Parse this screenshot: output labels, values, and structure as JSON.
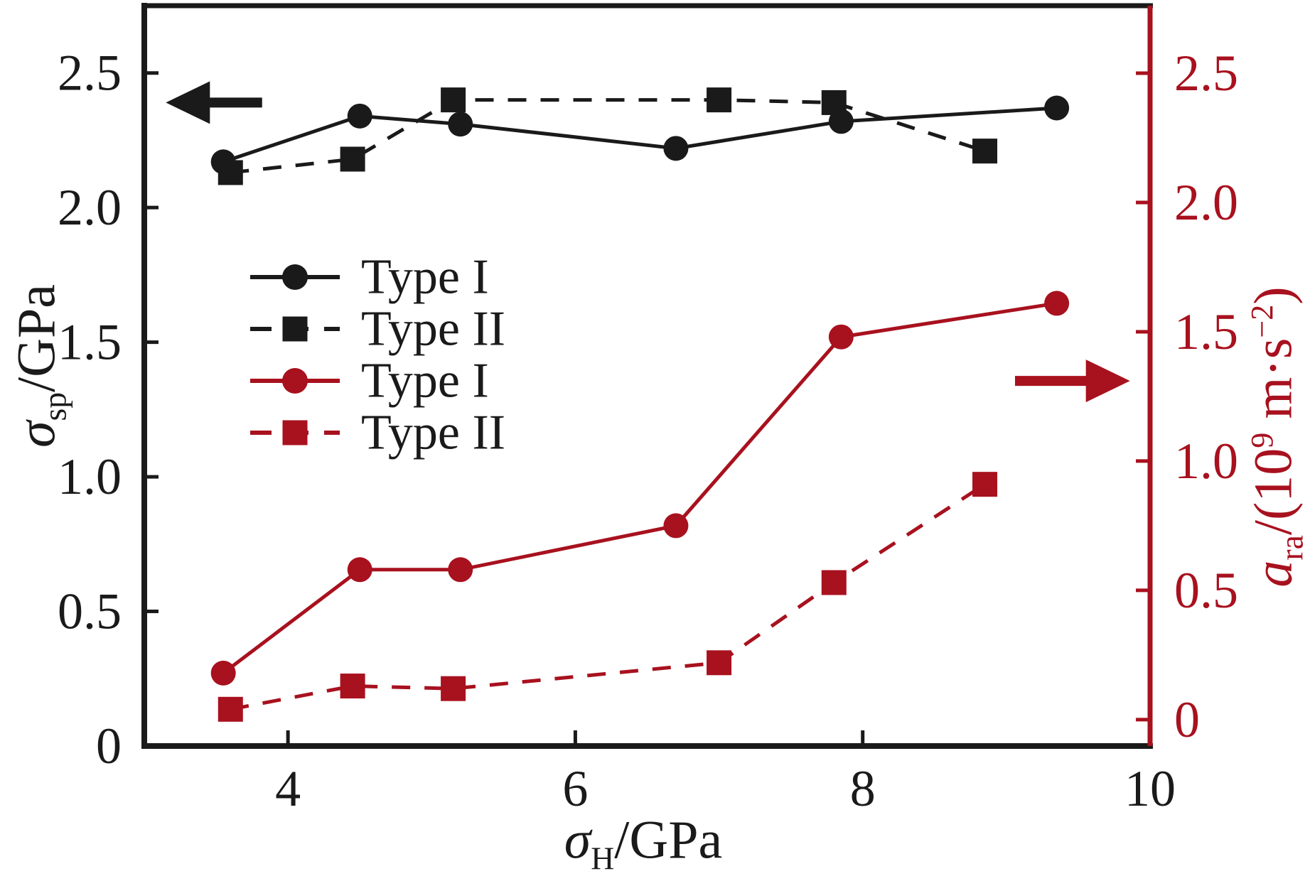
{
  "figure": {
    "background": "#ffffff",
    "colors": {
      "black_series": "#1a1a1a",
      "red_series": "#a8111e"
    }
  },
  "labels": {
    "left": {
      "symbol": "σ",
      "sub": "sp",
      "suffix": "/GPa"
    },
    "x": {
      "symbol": "σ",
      "sub": "H",
      "suffix": "/GPa"
    },
    "right": {
      "symbol": "a",
      "sub": "ra",
      "pre": "/(10",
      "sup1": "9",
      "mid": " m·s",
      "sup2": "−2",
      "post": ")"
    }
  },
  "chart_data": {
    "type": "line",
    "x_axis": {
      "label": "σ_H/GPa",
      "range": [
        3,
        10
      ],
      "tick_labels": [
        "4",
        "6",
        "8",
        "10"
      ],
      "tick_values": [
        4,
        6,
        8,
        10
      ],
      "tick_marks": [
        4,
        6,
        8
      ]
    },
    "y_left_axis": {
      "label": "σ_sp/GPa",
      "range": [
        0,
        2.75
      ],
      "color": "#1a1a1a",
      "tick_labels": [
        "0",
        "0.5",
        "1.0",
        "1.5",
        "2.0",
        "2.5"
      ],
      "tick_values": [
        0,
        0.5,
        1.0,
        1.5,
        2.0,
        2.5
      ],
      "tick_marks": [
        0.5,
        1.0,
        1.5,
        2.0,
        2.5
      ]
    },
    "y_right_axis": {
      "label": "a_ra/(10^9 m·s^-2)",
      "range": [
        -0.102,
        2.761
      ],
      "color": "#a8111e",
      "tick_labels": [
        "0",
        "0.5",
        "1.0",
        "1.5",
        "2.0",
        "2.5"
      ],
      "tick_values": [
        0,
        0.5,
        1.0,
        1.5,
        2.0,
        2.5
      ],
      "tick_marks": [
        0,
        0.5,
        1.0,
        1.5,
        2.0,
        2.5
      ]
    },
    "grid": false,
    "legend_position": "center-left",
    "series": [
      {
        "name": "Type I",
        "axis": "left",
        "color": "#1a1a1a",
        "marker": "circle",
        "line": "solid",
        "x": [
          3.55,
          4.5,
          5.2,
          6.7,
          7.85,
          9.35
        ],
        "y": [
          2.17,
          2.34,
          2.31,
          2.22,
          2.32,
          2.37
        ]
      },
      {
        "name": "Type II",
        "axis": "left",
        "color": "#1a1a1a",
        "marker": "square",
        "line": "dashed",
        "x": [
          3.6,
          4.45,
          5.15,
          7.0,
          7.8,
          8.85
        ],
        "y": [
          2.13,
          2.18,
          2.4,
          2.4,
          2.39,
          2.21
        ]
      },
      {
        "name": "Type I",
        "axis": "right",
        "color": "#a8111e",
        "marker": "circle",
        "line": "solid",
        "x": [
          3.55,
          4.5,
          5.2,
          6.7,
          7.85,
          9.35
        ],
        "y": [
          0.18,
          0.58,
          0.58,
          0.75,
          1.48,
          1.61
        ]
      },
      {
        "name": "Type II",
        "axis": "right",
        "color": "#a8111e",
        "marker": "square",
        "line": "dashed",
        "x": [
          3.6,
          4.45,
          5.15,
          7.0,
          7.8,
          8.85
        ],
        "y": [
          0.04,
          0.13,
          0.12,
          0.22,
          0.53,
          0.91
        ]
      }
    ],
    "annotations": [
      {
        "type": "arrow",
        "points_to": "left-axis",
        "direction": "left",
        "color": "#1a1a1a",
        "axis": "left",
        "x_tail": 3.82,
        "x_tip": 3.15,
        "y": 2.39
      },
      {
        "type": "arrow",
        "points_to": "right-axis",
        "direction": "right",
        "color": "#a8111e",
        "axis": "right",
        "x_tail": 9.06,
        "x_tip": 9.86,
        "y": 1.31
      }
    ]
  }
}
